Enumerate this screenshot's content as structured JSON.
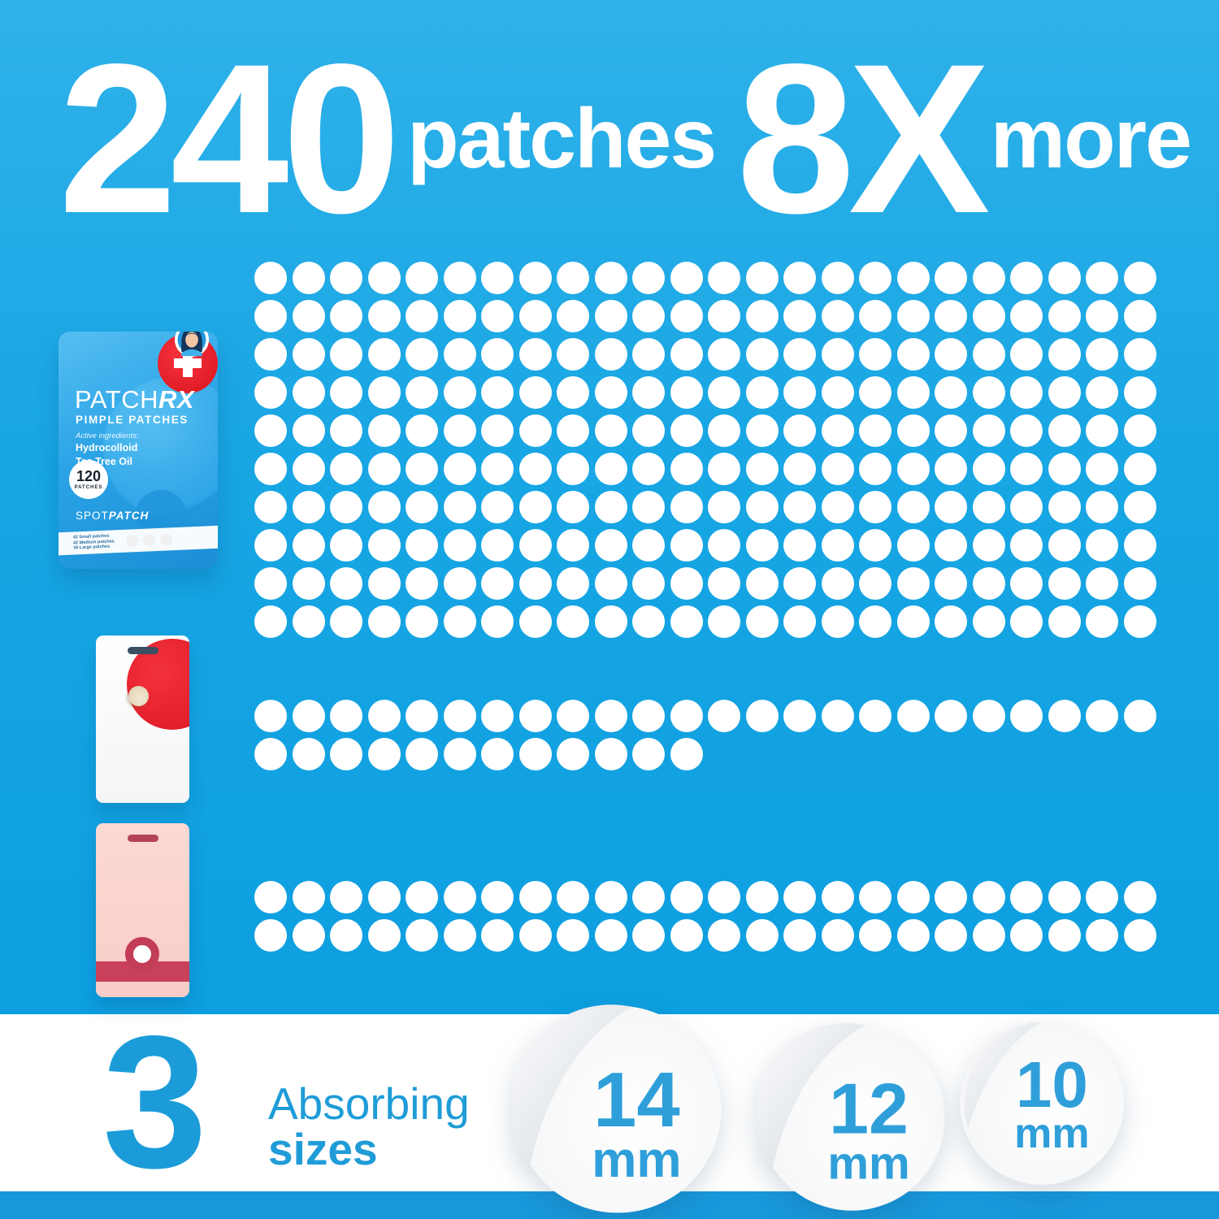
{
  "headline": {
    "count": "240",
    "count_word": "patches",
    "multiplier": "8X",
    "multiplier_word": "more"
  },
  "product_package": {
    "brand_prefix": "PATCH",
    "brand_suffix": "RX",
    "product_type": "PIMPLE PATCHES",
    "ingredients_heading": "Active ingredients:",
    "ingredient_1": "Hydrocolloid",
    "ingredient_2": "Tea Tree Oil",
    "badge_count": "120",
    "badge_label": "PATCHES",
    "footer_brand_prefix": "SPOT",
    "footer_brand_suffix": "PATCH",
    "contents_lines": [
      "42 Small patches",
      "42 Medium patches",
      "36 Large patches"
    ]
  },
  "chart_data": {
    "type": "pictograph",
    "title": "240 patches 8X more",
    "groups": [
      {
        "label": "PatchRX pack (120 patches x2)",
        "rows": [
          24,
          24,
          24,
          24,
          24,
          24,
          24,
          24,
          24,
          24
        ],
        "total": 240
      },
      {
        "label": "Competitor white box",
        "rows": [
          24,
          12
        ],
        "total": 36
      },
      {
        "label": "Competitor pink box",
        "rows": [
          24,
          24
        ],
        "total": 48
      }
    ]
  },
  "sizes_section": {
    "count": "3",
    "word_top": "Absorbing",
    "word_bottom": "sizes",
    "sizes": [
      {
        "value": "14",
        "unit": "mm"
      },
      {
        "value": "12",
        "unit": "mm"
      },
      {
        "value": "10",
        "unit": "mm"
      }
    ]
  },
  "colors": {
    "background_top": "#2fb1e9",
    "background_bottom": "#0d9fe0",
    "accent_blue": "#1b9cd9",
    "size_text_blue": "#2f9fda",
    "white": "#ffffff",
    "red_badge": "#e8232e",
    "pink_box": "#fcd9d3",
    "dark_red": "#c33d56",
    "footer_strip": "#1898db"
  }
}
